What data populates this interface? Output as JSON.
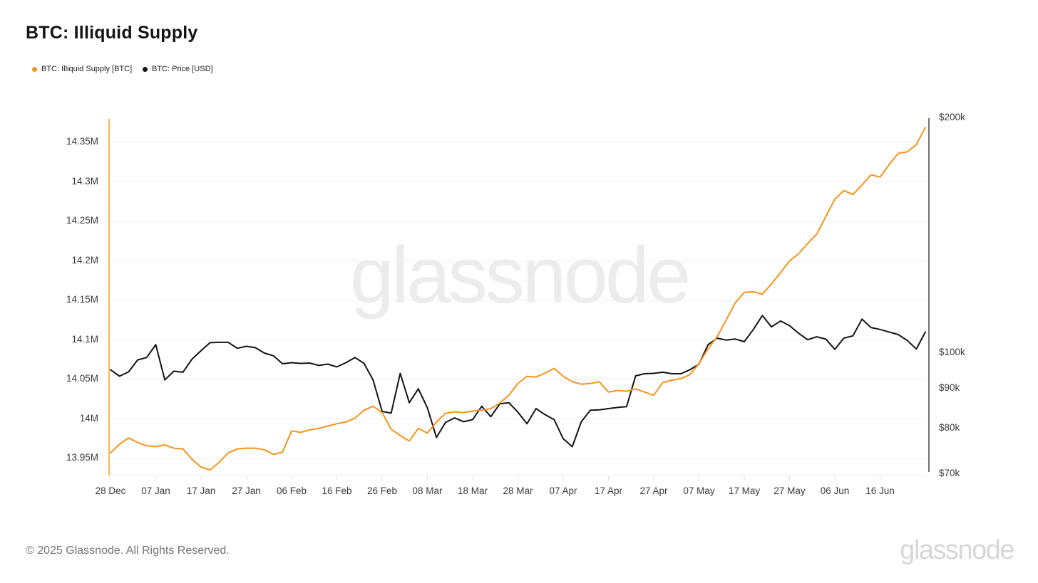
{
  "header": {
    "title": "BTC: Illiquid Supply"
  },
  "legend": {
    "items": [
      {
        "label": "BTC: Illiquid Supply [BTC]",
        "color": "#f7931a"
      },
      {
        "label": "BTC: Price [USD]",
        "color": "#141414"
      }
    ]
  },
  "watermark_text": "glassnode",
  "footer": {
    "copyright": "© 2025 Glassnode. All Rights Reserved.",
    "logo_text": "glassnode"
  },
  "colors": {
    "accent_orange": "#f7931a",
    "price_black": "#141414",
    "gridline": "#efefef",
    "axis_right": "#3a3a3a",
    "tick_text": "#3b3b3b"
  },
  "chart_data": {
    "type": "line",
    "title": "BTC: Illiquid Supply",
    "x_unit": "days since 28 Dec 2024, step 2 days",
    "x": [
      0,
      2,
      4,
      6,
      8,
      10,
      12,
      14,
      16,
      18,
      20,
      22,
      24,
      26,
      28,
      30,
      32,
      34,
      36,
      38,
      40,
      42,
      44,
      46,
      48,
      50,
      52,
      54,
      56,
      58,
      60,
      62,
      64,
      66,
      68,
      70,
      72,
      74,
      76,
      78,
      80,
      82,
      84,
      86,
      88,
      90,
      92,
      94,
      96,
      98,
      100,
      102,
      104,
      106,
      108,
      110,
      112,
      114,
      116,
      118,
      120,
      122,
      124,
      126,
      128,
      130,
      132,
      134,
      136,
      138,
      140,
      142,
      144,
      146,
      148,
      150,
      152,
      154,
      156,
      158,
      160,
      162,
      164,
      166,
      168,
      170,
      172,
      174,
      176,
      178,
      180
    ],
    "x_ticks": [
      {
        "label": "28 Dec",
        "day": 0
      },
      {
        "label": "07 Jan",
        "day": 10
      },
      {
        "label": "17 Jan",
        "day": 20
      },
      {
        "label": "27 Jan",
        "day": 30
      },
      {
        "label": "06 Feb",
        "day": 40
      },
      {
        "label": "16 Feb",
        "day": 50
      },
      {
        "label": "26 Feb",
        "day": 60
      },
      {
        "label": "08 Mar",
        "day": 70
      },
      {
        "label": "18 Mar",
        "day": 80
      },
      {
        "label": "28 Mar",
        "day": 90
      },
      {
        "label": "07 Apr",
        "day": 100
      },
      {
        "label": "17 Apr",
        "day": 110
      },
      {
        "label": "27 Apr",
        "day": 120
      },
      {
        "label": "07 May",
        "day": 130
      },
      {
        "label": "17 May",
        "day": 140
      },
      {
        "label": "27 May",
        "day": 150
      },
      {
        "label": "06 Jun",
        "day": 160
      },
      {
        "label": "16 Jun",
        "day": 170
      }
    ],
    "left_axis": {
      "series": "BTC: Illiquid Supply [BTC]",
      "scale": "linear",
      "unit": "M BTC",
      "range": [
        13.925,
        14.38
      ],
      "ticks": [
        {
          "label": "14.35M",
          "value": 14.35
        },
        {
          "label": "14.3M",
          "value": 14.3
        },
        {
          "label": "14.25M",
          "value": 14.25
        },
        {
          "label": "14.2M",
          "value": 14.2
        },
        {
          "label": "14.15M",
          "value": 14.15
        },
        {
          "label": "14.1M",
          "value": 14.1
        },
        {
          "label": "14.05M",
          "value": 14.05
        },
        {
          "label": "14M",
          "value": 14.0
        },
        {
          "label": "13.95M",
          "value": 13.95
        }
      ]
    },
    "right_axis": {
      "series": "BTC: Price [USD]",
      "scale": "log",
      "unit": "$k",
      "range": [
        68,
        210
      ],
      "ticks": [
        {
          "label": "$200k",
          "value": 200
        },
        {
          "label": "$100k",
          "value": 100
        },
        {
          "label": "$90k",
          "value": 90
        },
        {
          "label": "$80k",
          "value": 80
        },
        {
          "label": "$70k",
          "value": 70
        }
      ]
    },
    "series": [
      {
        "name": "BTC: Price [USD]",
        "axis": "right",
        "color": "#141414",
        "values": [
          95.0,
          93.2,
          94.4,
          97.8,
          98.5,
          102.3,
          92.2,
          94.6,
          94.3,
          98.0,
          100.5,
          102.9,
          103.0,
          103.0,
          101.2,
          101.8,
          101.4,
          99.8,
          99.0,
          96.7,
          97.0,
          96.8,
          96.9,
          96.2,
          96.6,
          95.8,
          97.0,
          98.5,
          96.8,
          92.2,
          84.0,
          83.6,
          94.0,
          86.2,
          89.8,
          84.9,
          77.8,
          81.3,
          82.4,
          81.5,
          82.0,
          85.3,
          82.7,
          85.9,
          86.2,
          83.8,
          81.0,
          84.7,
          83.2,
          82.0,
          77.5,
          75.7,
          81.5,
          84.3,
          84.4,
          84.7,
          85.0,
          85.2,
          93.3,
          93.9,
          94.0,
          94.3,
          93.9,
          93.9,
          95.0,
          96.6,
          102.3,
          104.3,
          103.7,
          104.0,
          103.2,
          107.0,
          111.5,
          107.8,
          109.7,
          108.2,
          105.8,
          103.8,
          104.7,
          104.0,
          100.9,
          104.3,
          105.0,
          110.3,
          107.6,
          107.0,
          106.2,
          105.4,
          103.6,
          101.0,
          106.2
        ]
      },
      {
        "name": "BTC: Illiquid Supply [BTC]",
        "axis": "left",
        "color": "#f7931a",
        "values": [
          13.957,
          13.968,
          13.976,
          13.97,
          13.966,
          13.965,
          13.967,
          13.963,
          13.962,
          13.949,
          13.939,
          13.9355,
          13.945,
          13.957,
          13.962,
          13.963,
          13.963,
          13.961,
          13.955,
          13.958,
          13.985,
          13.983,
          13.986,
          13.988,
          13.991,
          13.994,
          13.996,
          14.001,
          14.011,
          14.016,
          14.008,
          13.987,
          13.979,
          13.972,
          13.988,
          13.982,
          13.996,
          14.007,
          14.009,
          14.008,
          14.01,
          14.011,
          14.013,
          14.02,
          14.03,
          14.045,
          14.054,
          14.053,
          14.058,
          14.064,
          14.054,
          14.047,
          14.044,
          14.045,
          14.047,
          14.034,
          14.036,
          14.035,
          14.038,
          14.034,
          14.03,
          14.046,
          14.049,
          14.051,
          14.056,
          14.07,
          14.089,
          14.104,
          14.125,
          14.147,
          14.16,
          14.161,
          14.158,
          14.171,
          14.185,
          14.2,
          14.209,
          14.222,
          14.234,
          14.256,
          14.278,
          14.289,
          14.284,
          14.296,
          14.309,
          14.306,
          14.322,
          14.336,
          14.338,
          14.347,
          14.369
        ]
      }
    ],
    "legend_position": "top-left",
    "grid": "horizontal-only"
  }
}
